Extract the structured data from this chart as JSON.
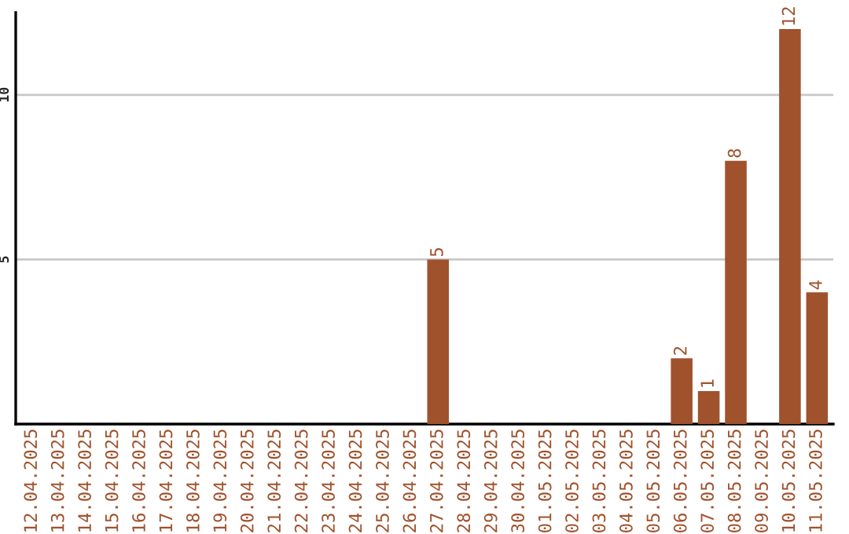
{
  "chart_data": {
    "type": "bar",
    "categories": [
      "12.04.2025",
      "13.04.2025",
      "14.04.2025",
      "15.04.2025",
      "16.04.2025",
      "17.04.2025",
      "18.04.2025",
      "19.04.2025",
      "20.04.2025",
      "21.04.2025",
      "22.04.2025",
      "23.04.2025",
      "24.04.2025",
      "25.04.2025",
      "26.04.2025",
      "27.04.2025",
      "28.04.2025",
      "29.04.2025",
      "30.04.2025",
      "01.05.2025",
      "02.05.2025",
      "03.05.2025",
      "04.05.2025",
      "05.05.2025",
      "06.05.2025",
      "07.05.2025",
      "08.05.2025",
      "09.05.2025",
      "10.05.2025",
      "11.05.2025"
    ],
    "values": [
      0,
      0,
      0,
      0,
      0,
      0,
      0,
      0,
      0,
      0,
      0,
      0,
      0,
      0,
      0,
      5,
      0,
      0,
      0,
      0,
      0,
      0,
      0,
      0,
      2,
      1,
      8,
      0,
      12,
      4
    ],
    "value_labels": [
      null,
      null,
      null,
      null,
      null,
      null,
      null,
      null,
      null,
      null,
      null,
      null,
      null,
      null,
      null,
      "5",
      null,
      null,
      null,
      null,
      null,
      null,
      null,
      null,
      "2",
      "1",
      "8",
      null,
      "12",
      "4"
    ],
    "color": "#a0522d",
    "ylim": [
      0,
      12.5
    ],
    "yticks": [
      5,
      10
    ],
    "grid": "y"
  }
}
